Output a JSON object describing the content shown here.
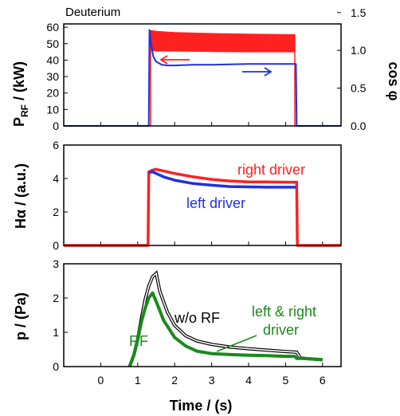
{
  "chart_data": [
    {
      "type": "line",
      "panel_label": "Deuterium",
      "ylabel_main": "P",
      "ylabel_sub": "RF",
      "ylabel_tail": " / (kW)",
      "y2label": "cos φ",
      "xlim": [
        -1,
        6.5
      ],
      "ylim": [
        0,
        62
      ],
      "y2lim": [
        0,
        1.35
      ],
      "y_ticks": [
        "0",
        "10",
        "20",
        "30",
        "40",
        "50",
        "60"
      ],
      "y2_ticks": [
        "0.0",
        "0.5",
        "1.0",
        "1.5"
      ],
      "colors": {
        "power": "#ff2020",
        "cos_phi": "#2030e0"
      },
      "series": [
        {
          "axis": "left",
          "color": "#ff2020",
          "band": true,
          "x": [
            1.35,
            1.5,
            2.0,
            3.0,
            4.0,
            5.0,
            5.25
          ],
          "upper": [
            58,
            57.5,
            56.8,
            56.2,
            55.8,
            55.5,
            55.5
          ],
          "lower": [
            46,
            45.5,
            45.5,
            45.2,
            45.0,
            45.0,
            45.0
          ]
        },
        {
          "axis": "right",
          "color": "#2030e0",
          "x": [
            -1,
            1.28,
            1.3,
            1.32,
            1.36,
            1.42,
            1.5,
            1.65,
            1.8,
            2.0,
            2.5,
            3.0,
            4.0,
            5.0,
            5.28,
            5.3,
            6.5
          ],
          "y": [
            0,
            0,
            0,
            1.27,
            1.1,
            0.92,
            0.85,
            0.81,
            0.8,
            0.8,
            0.81,
            0.81,
            0.82,
            0.82,
            0.82,
            0,
            0
          ]
        }
      ],
      "arrows": [
        {
          "direction": "left",
          "color": "#ff2020"
        },
        {
          "direction": "right",
          "color": "#2030e0"
        }
      ]
    },
    {
      "type": "line",
      "ylabel": "Hα / (a.u.)",
      "xlim": [
        -1,
        6.5
      ],
      "ylim": [
        0,
        6
      ],
      "y_ticks": [
        "0",
        "2",
        "4",
        "6"
      ],
      "series": [
        {
          "name": "right driver",
          "color": "#ff2020",
          "x": [
            -1,
            1.28,
            1.3,
            1.4,
            1.5,
            1.7,
            2.0,
            2.5,
            3.0,
            3.5,
            4.0,
            4.5,
            5.0,
            5.3,
            5.32,
            6.5
          ],
          "y": [
            0,
            0,
            4.4,
            4.5,
            4.55,
            4.45,
            4.3,
            4.1,
            3.95,
            3.85,
            3.8,
            3.8,
            3.78,
            3.78,
            0,
            0
          ]
        },
        {
          "name": "left driver",
          "color": "#2030e0",
          "x": [
            1.3,
            1.4,
            1.5,
            1.7,
            2.0,
            2.5,
            3.0,
            3.5,
            4.0,
            4.5,
            5.0,
            5.28
          ],
          "y": [
            4.35,
            4.4,
            4.3,
            4.1,
            3.9,
            3.7,
            3.6,
            3.52,
            3.5,
            3.48,
            3.48,
            3.48
          ]
        }
      ]
    },
    {
      "type": "line",
      "ylabel": "p / (Pa)",
      "xlabel": "Time / (s)",
      "xlim": [
        -1,
        6.5
      ],
      "ylim": [
        0,
        3
      ],
      "y_ticks": [
        "0",
        "1",
        "2",
        "3"
      ],
      "x_ticks": [
        "0",
        "1",
        "2",
        "3",
        "4",
        "5",
        "6"
      ],
      "series": [
        {
          "name": "w/o RF",
          "color": "#000000",
          "x": [
            0.78,
            0.9,
            1.0,
            1.1,
            1.2,
            1.3,
            1.4,
            1.5,
            1.6,
            1.8,
            2.0,
            2.3,
            2.6,
            3.0,
            3.5,
            4.0,
            4.5,
            5.0,
            5.3,
            5.4,
            5.5,
            6.0
          ],
          "y": [
            0.0,
            0.35,
            0.8,
            1.4,
            1.95,
            2.35,
            2.62,
            2.72,
            2.2,
            1.6,
            1.2,
            0.9,
            0.75,
            0.65,
            0.57,
            0.52,
            0.48,
            0.44,
            0.42,
            0.25,
            0.24,
            0.2
          ]
        },
        {
          "name": "RF",
          "color": "#1a8a1a",
          "x": [
            0.78,
            0.9,
            1.0,
            1.1,
            1.2,
            1.3,
            1.4,
            1.5,
            1.7,
            2.0,
            2.3,
            2.6,
            3.0,
            3.5,
            4.0,
            4.5,
            5.0,
            5.25,
            5.3,
            5.5,
            6.0
          ],
          "y": [
            0.0,
            0.35,
            0.78,
            1.3,
            1.7,
            2.0,
            2.15,
            1.9,
            1.35,
            0.85,
            0.6,
            0.45,
            0.38,
            0.35,
            0.33,
            0.32,
            0.3,
            0.3,
            0.24,
            0.24,
            0.2
          ]
        }
      ],
      "annotations": [
        {
          "text": "w/o RF",
          "color": "#000000"
        },
        {
          "text": "RF",
          "color": "#1a8a1a"
        },
        {
          "text": "left & right",
          "color": "#1a8a1a"
        },
        {
          "text": "driver",
          "color": "#1a8a1a"
        }
      ]
    }
  ]
}
